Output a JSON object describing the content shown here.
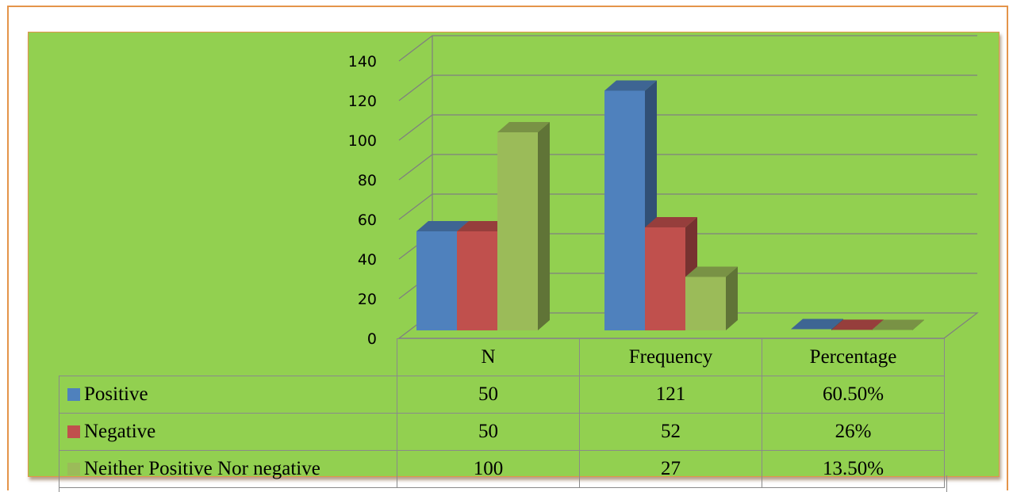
{
  "chart_data": {
    "type": "bar",
    "style": "3d-clustered-column",
    "categories": [
      "N",
      "Frequency",
      "Percentage"
    ],
    "series": [
      {
        "name": "Positive",
        "values": [
          50,
          121,
          0.605
        ],
        "labels": [
          "50",
          "121",
          "60.50%"
        ],
        "color": "#4f81bd"
      },
      {
        "name": "Negative",
        "values": [
          50,
          52,
          0.26
        ],
        "labels": [
          "50",
          "52",
          "26%"
        ],
        "color": "#c0504d"
      },
      {
        "name": "Neither Positive Nor negative",
        "values": [
          100,
          27,
          0.135
        ],
        "labels": [
          "100",
          "27",
          "13.50%"
        ],
        "color": "#9bbb59"
      }
    ],
    "ylim": [
      0,
      140
    ],
    "yticks": [
      "0",
      "20",
      "40",
      "60",
      "80",
      "100",
      "120",
      "140"
    ],
    "grid": true,
    "legend": "data-table"
  },
  "colors": {
    "background": "#92d050",
    "border": "#e4944a",
    "gridline": "#7f7f7f"
  }
}
